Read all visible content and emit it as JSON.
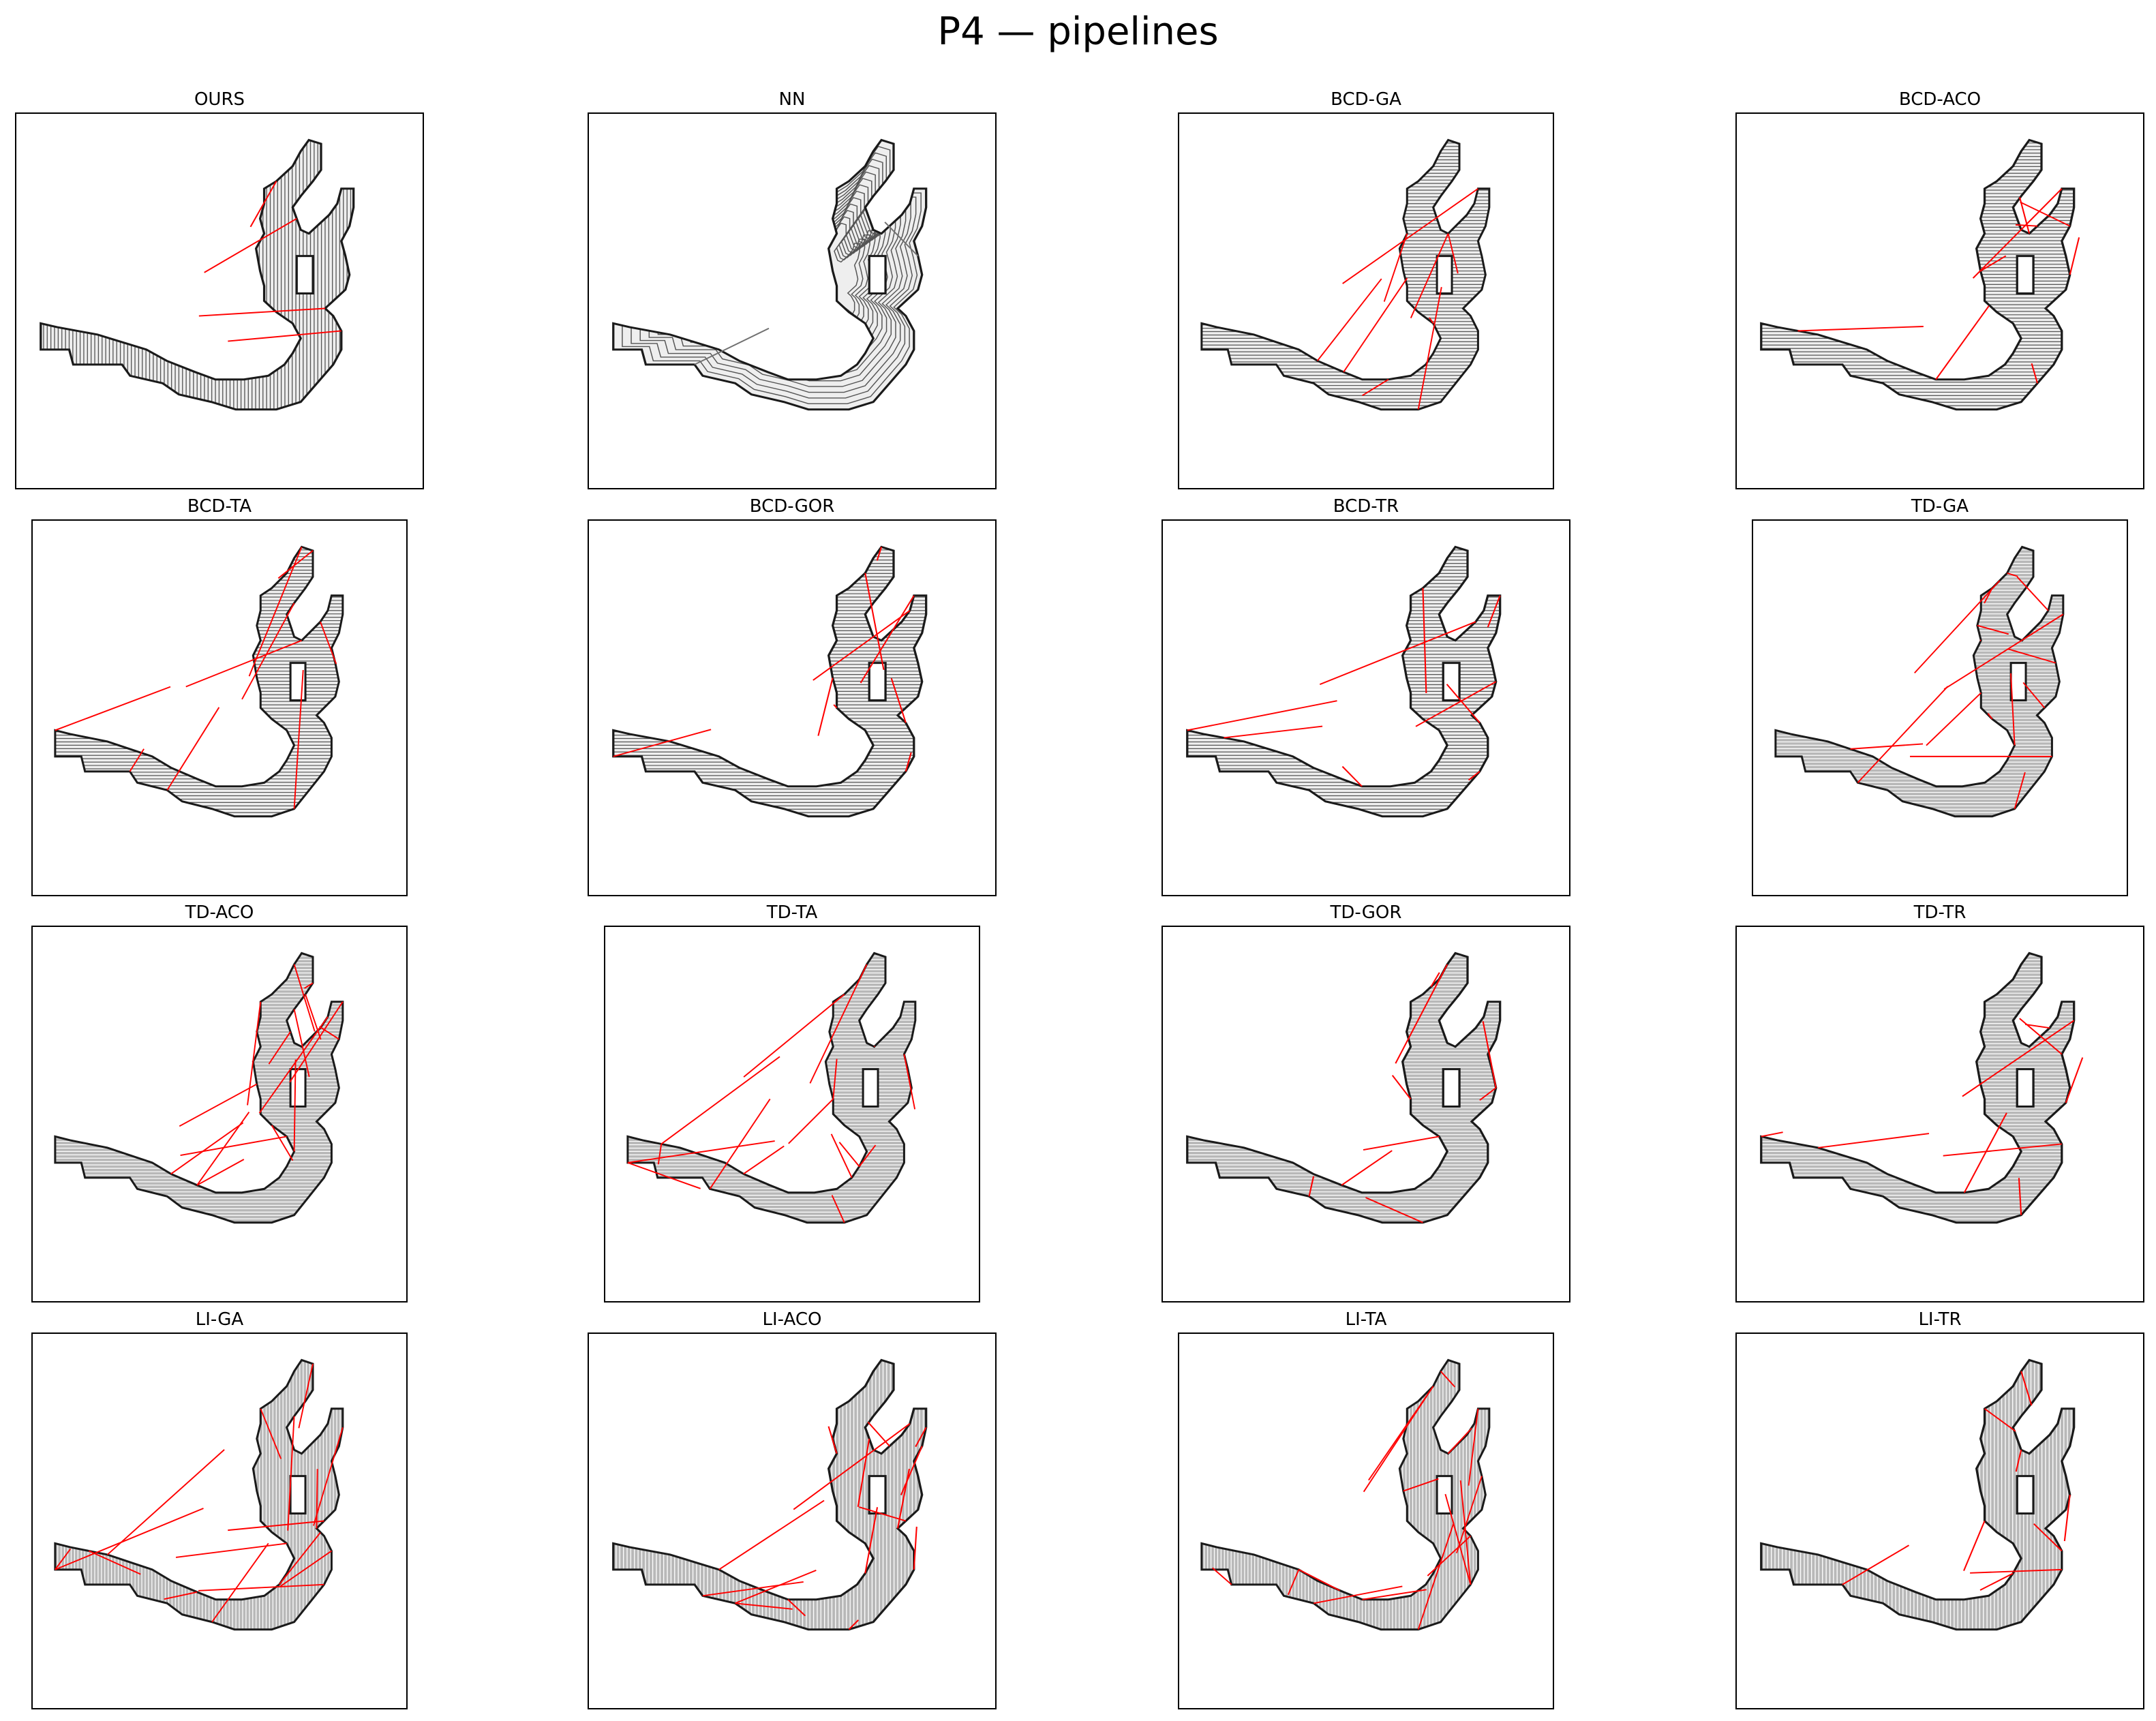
{
  "figure_title": "P4 — pipelines",
  "panels": [
    {
      "label": "OURS",
      "fill": "light",
      "pattern": "vertical",
      "connectors": "few"
    },
    {
      "label": "NN",
      "fill": "light",
      "pattern": "contour",
      "connectors": "gray"
    },
    {
      "label": "BCD-GA",
      "fill": "light",
      "pattern": "horizontal",
      "connectors": "some"
    },
    {
      "label": "BCD-ACO",
      "fill": "light",
      "pattern": "horizontal",
      "connectors": "some"
    },
    {
      "label": "BCD-TA",
      "fill": "light",
      "pattern": "horizontal",
      "connectors": "some"
    },
    {
      "label": "BCD-GOR",
      "fill": "light",
      "pattern": "horizontal",
      "connectors": "some"
    },
    {
      "label": "BCD-TR",
      "fill": "light",
      "pattern": "horizontal",
      "connectors": "some"
    },
    {
      "label": "TD-GA",
      "fill": "dark",
      "pattern": "horizontal",
      "connectors": "many"
    },
    {
      "label": "TD-ACO",
      "fill": "dark",
      "pattern": "horizontal",
      "connectors": "many"
    },
    {
      "label": "TD-TA",
      "fill": "dark",
      "pattern": "horizontal",
      "connectors": "many"
    },
    {
      "label": "TD-GOR",
      "fill": "dark",
      "pattern": "horizontal",
      "connectors": "some"
    },
    {
      "label": "TD-TR",
      "fill": "dark",
      "pattern": "horizontal",
      "connectors": "some"
    },
    {
      "label": "LI-GA",
      "fill": "dark",
      "pattern": "vertical",
      "connectors": "many"
    },
    {
      "label": "LI-ACO",
      "fill": "dark",
      "pattern": "vertical",
      "connectors": "many"
    },
    {
      "label": "LI-TA",
      "fill": "dark",
      "pattern": "vertical",
      "connectors": "many"
    },
    {
      "label": "LI-TR",
      "fill": "dark",
      "pattern": "vertical",
      "connectors": "some"
    }
  ],
  "colors": {
    "outline": "#1a1a1a",
    "fill_light": "#eeeeee",
    "fill_dark": "#b8b8b8",
    "path_line": "#555555",
    "connector": "#ff0000",
    "connector_gray": "#707070"
  }
}
